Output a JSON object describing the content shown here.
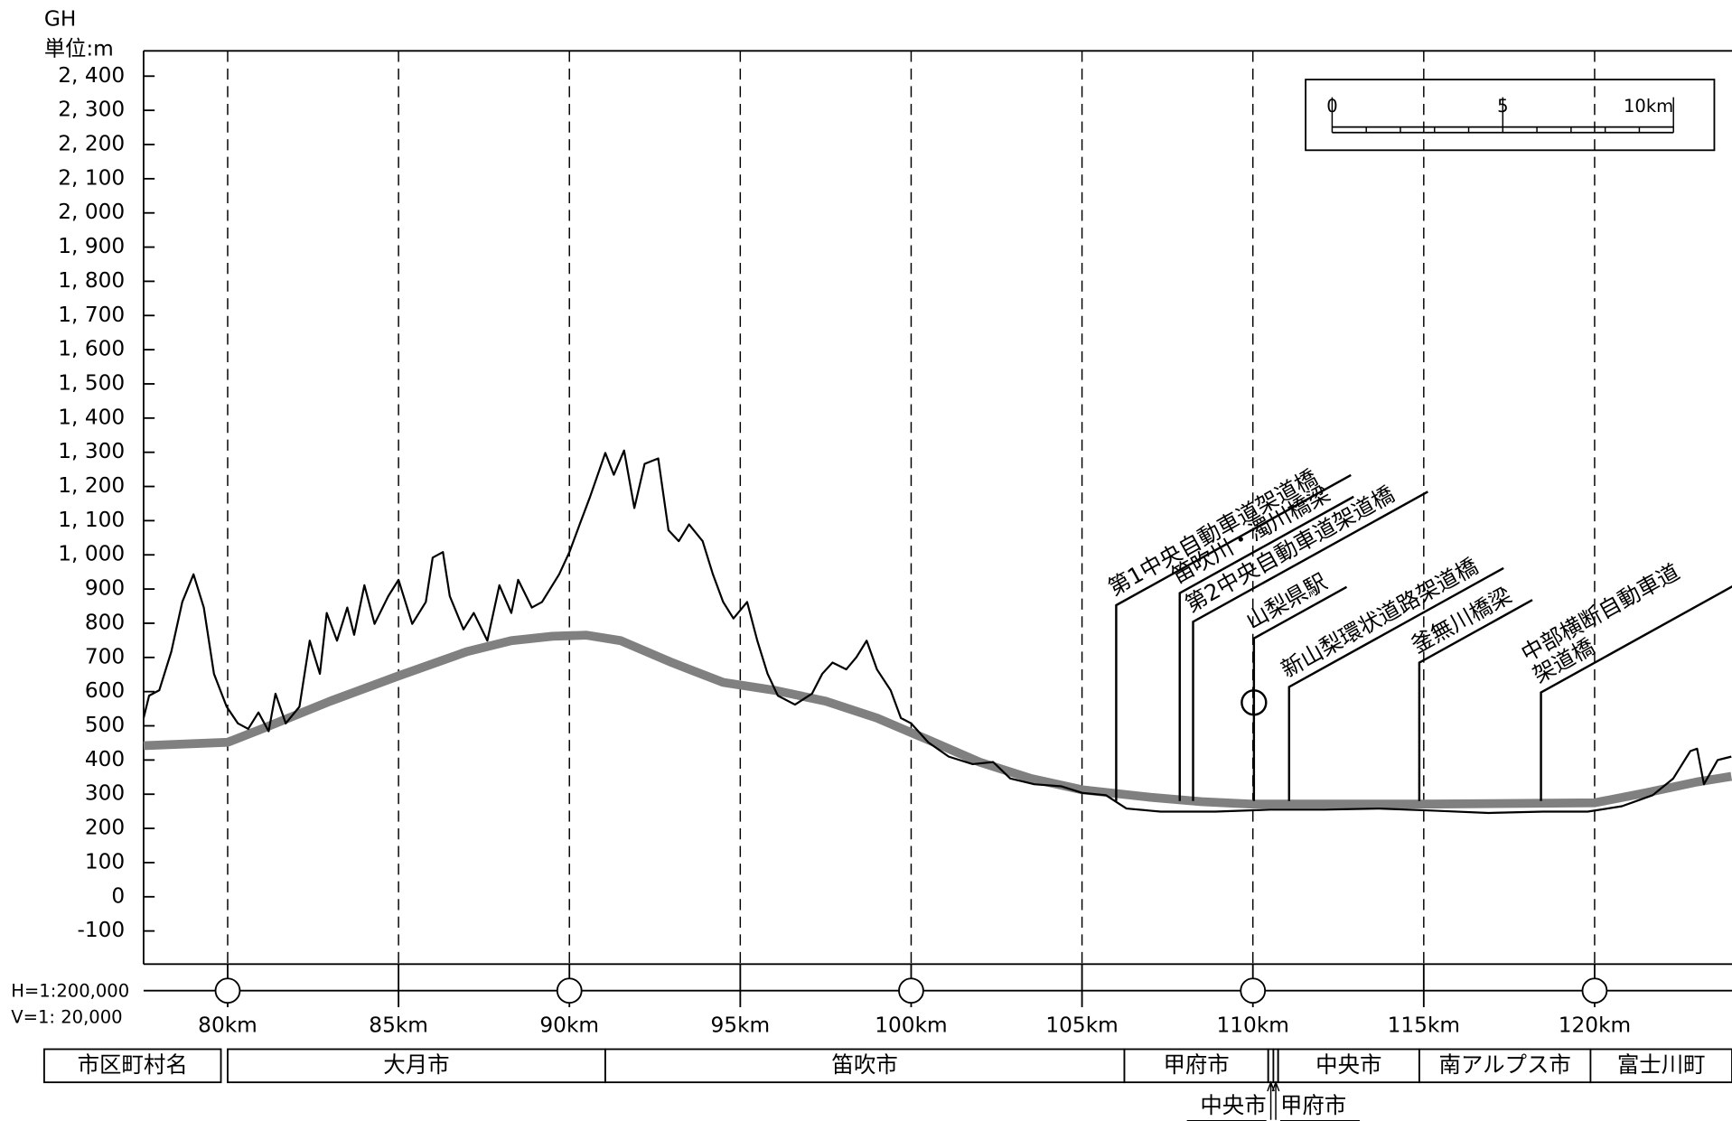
{
  "chart_data": {
    "type": "line",
    "y_label_top": "GH",
    "y_unit": "単位:m",
    "h_scale": "H=1:200,000",
    "v_scale": "V=1: 20,000",
    "xlim": [
      77.54,
      124.02
    ],
    "ylim": [
      -197,
      2474
    ],
    "xticks": [
      {
        "value": 80,
        "label": "80km"
      },
      {
        "value": 85,
        "label": "85km"
      },
      {
        "value": 90,
        "label": "90km"
      },
      {
        "value": 95,
        "label": "95km"
      },
      {
        "value": 100,
        "label": "100km"
      },
      {
        "value": 105,
        "label": "105km"
      },
      {
        "value": 110,
        "label": "110km"
      },
      {
        "value": 115,
        "label": "115km"
      },
      {
        "value": 120,
        "label": "120km"
      }
    ],
    "yticks": [
      {
        "value": 2400,
        "label": "2, 400"
      },
      {
        "value": 2300,
        "label": "2, 300"
      },
      {
        "value": 2200,
        "label": "2, 200"
      },
      {
        "value": 2100,
        "label": "2, 100"
      },
      {
        "value": 2000,
        "label": "2, 000"
      },
      {
        "value": 1900,
        "label": "1, 900"
      },
      {
        "value": 1800,
        "label": "1, 800"
      },
      {
        "value": 1700,
        "label": "1, 700"
      },
      {
        "value": 1600,
        "label": "1, 600"
      },
      {
        "value": 1500,
        "label": "1, 500"
      },
      {
        "value": 1400,
        "label": "1, 400"
      },
      {
        "value": 1300,
        "label": "1, 300"
      },
      {
        "value": 1200,
        "label": "1, 200"
      },
      {
        "value": 1100,
        "label": "1, 100"
      },
      {
        "value": 1000,
        "label": "1, 000"
      },
      900,
      800,
      700,
      600,
      500,
      400,
      300,
      200,
      100,
      0,
      -100
    ],
    "grid": true,
    "series": [
      {
        "color": "#808080",
        "x": [
          77.54,
          80.0,
          81.0,
          83.0,
          85.0,
          87.0,
          88.3,
          89.5,
          90.5,
          91.5,
          93.0,
          94.5,
          96.0,
          97.5,
          99.0,
          100.5,
          102.0,
          103.5,
          105.0,
          107.0,
          108.5,
          110.0,
          115.0,
          120.0,
          121.5,
          123.0,
          124.0
        ],
        "values": [
          442,
          452,
          491,
          572,
          646,
          717,
          749,
          762,
          765,
          749,
          685,
          627,
          604,
          572,
          523,
          459,
          394,
          346,
          313,
          291,
          278,
          271,
          271,
          275,
          304,
          336,
          352
        ]
      },
      {
        "color": "#000000",
        "x": [
          77.54,
          77.7,
          78.0,
          78.35,
          78.67,
          79.0,
          79.3,
          79.6,
          79.97,
          80.3,
          80.6,
          80.9,
          81.2,
          81.4,
          81.7,
          82.1,
          82.4,
          82.7,
          82.9,
          83.2,
          83.5,
          83.7,
          84.0,
          84.3,
          84.7,
          85.0,
          85.4,
          85.8,
          86.0,
          86.3,
          86.5,
          86.9,
          87.2,
          87.6,
          87.95,
          88.3,
          88.5,
          88.9,
          89.2,
          89.7,
          90.0,
          90.3,
          90.6,
          91.05,
          91.3,
          91.6,
          91.9,
          92.2,
          92.6,
          92.9,
          93.2,
          93.5,
          93.9,
          94.2,
          94.5,
          94.8,
          95.2,
          95.5,
          95.8,
          96.1,
          96.6,
          97.1,
          97.4,
          97.7,
          98.1,
          98.4,
          98.7,
          99.0,
          99.4,
          99.7,
          100.0,
          100.5,
          101.1,
          101.8,
          102.4,
          102.9,
          103.6,
          104.4,
          105.0,
          105.7,
          106.1,
          106.3,
          107.3,
          108.9,
          110.5,
          112.1,
          113.7,
          115.3,
          116.9,
          118.5,
          119.8,
          120.8,
          121.7,
          122.3,
          122.8,
          123.0,
          123.2,
          123.6,
          124.0
        ],
        "values": [
          523,
          588,
          604,
          717,
          862,
          943,
          846,
          652,
          556,
          507,
          491,
          539,
          484,
          594,
          507,
          556,
          749,
          652,
          830,
          749,
          846,
          766,
          911,
          798,
          879,
          927,
          798,
          862,
          992,
          1008,
          879,
          782,
          830,
          749,
          911,
          830,
          927,
          846,
          862,
          943,
          1008,
          1089,
          1169,
          1298,
          1234,
          1305,
          1137,
          1266,
          1282,
          1072,
          1040,
          1089,
          1040,
          943,
          862,
          814,
          862,
          749,
          652,
          588,
          562,
          594,
          652,
          685,
          665,
          701,
          749,
          665,
          604,
          523,
          507,
          452,
          410,
          388,
          394,
          346,
          329,
          323,
          304,
          297,
          271,
          258,
          249,
          249,
          255,
          255,
          258,
          252,
          245,
          249,
          249,
          265,
          297,
          346,
          426,
          433,
          329,
          400,
          410
        ]
      }
    ],
    "annotations": [
      {
        "x": 106.0,
        "lines": [
          "第1中央自動車道架道橋"
        ]
      },
      {
        "x": 107.86,
        "lines": [
          "笛吹川・濁川橋梁"
        ]
      },
      {
        "x": 108.25,
        "lines": [
          "第2中央自動車道架道橋"
        ]
      },
      {
        "x": 110.03,
        "lines": [
          "山梨県駅"
        ]
      },
      {
        "x": 111.06,
        "lines": [
          "新山梨環状道路架道橋"
        ]
      },
      {
        "x": 114.87,
        "lines": [
          "釜無川橋梁"
        ]
      },
      {
        "x": 118.43,
        "lines": [
          "中部横断自動車道",
          "架道橋"
        ]
      }
    ],
    "scale_bar": [
      "0",
      "5",
      "10km"
    ],
    "municipality_header": "市区町村名",
    "municipalities": [
      {
        "name": "大月市",
        "from": 80,
        "to": 91.05
      },
      {
        "name": "笛吹市",
        "from": 91.05,
        "to": 106.24
      },
      {
        "name": "甲府市",
        "from": 106.24,
        "to": 110.45
      },
      {
        "name": "中央市",
        "from": 110.45,
        "to": 110.6
      },
      {
        "name": "甲府市",
        "from": 110.6,
        "to": 110.74
      },
      {
        "name": "中央市",
        "from": 110.74,
        "to": 114.87
      },
      {
        "name": "南アルプス市",
        "from": 114.87,
        "to": 119.88
      },
      {
        "name": "富士川町",
        "from": 119.88,
        "to": 124.02
      }
    ]
  }
}
